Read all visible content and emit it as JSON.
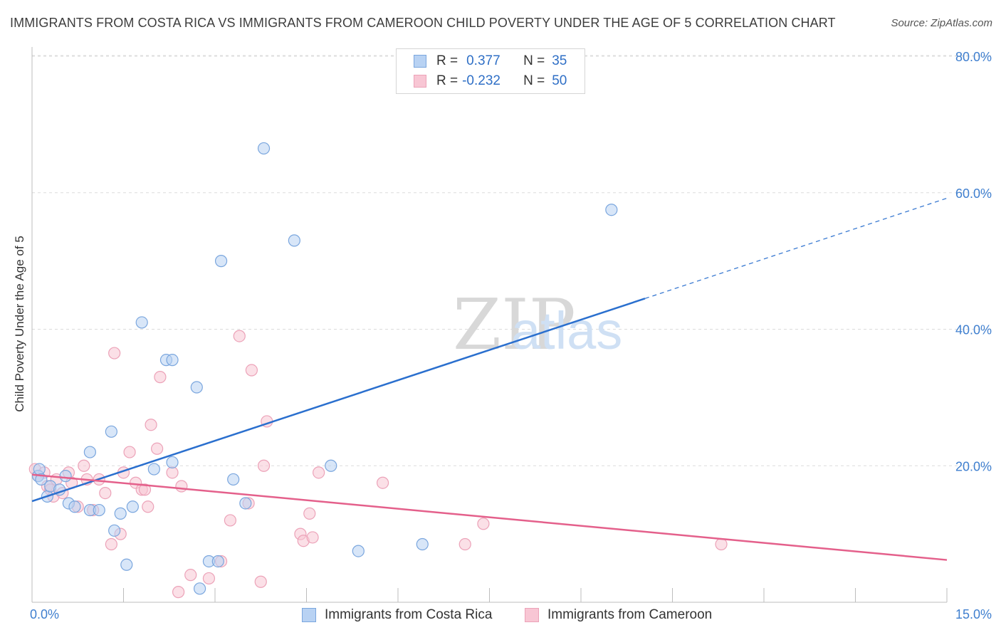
{
  "title": "IMMIGRANTS FROM COSTA RICA VS IMMIGRANTS FROM CAMEROON CHILD POVERTY UNDER THE AGE OF 5 CORRELATION CHART",
  "source": "Source: ZipAtlas.com",
  "watermark": {
    "zip": "ZIP",
    "atlas": "atlas"
  },
  "legend": {
    "series1": {
      "r_label": "R =",
      "r_value": "0.377",
      "n_label": "N =",
      "n_value": "35"
    },
    "series2": {
      "r_label": "R =",
      "r_value": "-0.232",
      "n_label": "N =",
      "n_value": "50"
    }
  },
  "colors": {
    "blue_fill": "#b8d2f3",
    "blue_stroke": "#7aa6de",
    "blue_line": "#2a6fce",
    "pink_fill": "#f8c6d4",
    "pink_stroke": "#eca2b8",
    "pink_line": "#e4608b",
    "axis_text": "#3f7fcf",
    "grid": "#dcdcdc"
  },
  "chart_data": {
    "type": "scatter",
    "title": "IMMIGRANTS FROM COSTA RICA VS IMMIGRANTS FROM CAMEROON CHILD POVERTY UNDER THE AGE OF 5 CORRELATION CHART",
    "xlabel": "",
    "ylabel": "Child Poverty Under the Age of 5",
    "xlim": [
      0,
      15
    ],
    "ylim": [
      0,
      82
    ],
    "x_tick_labels": [
      "0.0%",
      "15.0%"
    ],
    "y_ticks": [
      20,
      40,
      60,
      80
    ],
    "y_tick_labels": [
      "20.0%",
      "40.0%",
      "60.0%",
      "80.0%"
    ],
    "grid": true,
    "series": [
      {
        "name": "Immigrants from Costa Rica",
        "color": "#b8d2f3",
        "points": [
          [
            0.1,
            18.5
          ],
          [
            0.12,
            19.5
          ],
          [
            0.15,
            18
          ],
          [
            0.25,
            15.5
          ],
          [
            0.3,
            17
          ],
          [
            0.45,
            16.5
          ],
          [
            0.55,
            18.5
          ],
          [
            0.6,
            14.5
          ],
          [
            0.7,
            14
          ],
          [
            0.95,
            13.5
          ],
          [
            1.1,
            13.5
          ],
          [
            1.3,
            25
          ],
          [
            0.95,
            22
          ],
          [
            1.35,
            10.5
          ],
          [
            1.45,
            13
          ],
          [
            1.55,
            5.5
          ],
          [
            1.65,
            14
          ],
          [
            1.8,
            41
          ],
          [
            2.0,
            19.5
          ],
          [
            2.2,
            35.5
          ],
          [
            2.3,
            35.5
          ],
          [
            2.3,
            20.5
          ],
          [
            2.7,
            31.5
          ],
          [
            2.75,
            2
          ],
          [
            2.9,
            6
          ],
          [
            3.05,
            6
          ],
          [
            3.1,
            50
          ],
          [
            3.3,
            18
          ],
          [
            3.5,
            14.5
          ],
          [
            3.8,
            66.5
          ],
          [
            4.3,
            53
          ],
          [
            4.9,
            20
          ],
          [
            5.35,
            7.5
          ],
          [
            6.4,
            8.5
          ],
          [
            9.5,
            57.5
          ]
        ],
        "trend": {
          "x": [
            0,
            10.05
          ],
          "y": [
            14.8,
            44.5
          ],
          "dashed_to": [
            15,
            59.2
          ]
        }
      },
      {
        "name": "Immigrants from Cameroon",
        "color": "#f8c6d4",
        "points": [
          [
            0.05,
            19.5
          ],
          [
            0.1,
            18.5
          ],
          [
            0.2,
            19
          ],
          [
            0.25,
            17
          ],
          [
            0.3,
            16.5
          ],
          [
            0.35,
            15.5
          ],
          [
            0.4,
            18
          ],
          [
            0.5,
            16
          ],
          [
            0.6,
            19
          ],
          [
            0.65,
            17.5
          ],
          [
            0.75,
            14
          ],
          [
            0.85,
            20
          ],
          [
            0.9,
            18
          ],
          [
            1.0,
            13.5
          ],
          [
            1.1,
            18
          ],
          [
            1.2,
            16
          ],
          [
            1.3,
            8.5
          ],
          [
            1.35,
            36.5
          ],
          [
            1.45,
            10
          ],
          [
            1.5,
            19
          ],
          [
            1.6,
            22
          ],
          [
            1.7,
            17.5
          ],
          [
            1.8,
            16.5
          ],
          [
            1.85,
            16.5
          ],
          [
            1.9,
            14
          ],
          [
            1.95,
            26
          ],
          [
            2.05,
            22.5
          ],
          [
            2.1,
            33
          ],
          [
            2.3,
            19
          ],
          [
            2.4,
            1.5
          ],
          [
            2.45,
            17
          ],
          [
            2.6,
            4
          ],
          [
            2.9,
            3.5
          ],
          [
            3.1,
            6
          ],
          [
            3.25,
            12
          ],
          [
            3.4,
            39
          ],
          [
            3.55,
            14.5
          ],
          [
            3.6,
            34
          ],
          [
            3.75,
            3
          ],
          [
            3.8,
            20
          ],
          [
            3.85,
            26.5
          ],
          [
            4.4,
            10
          ],
          [
            4.45,
            9
          ],
          [
            4.55,
            13
          ],
          [
            4.6,
            9.5
          ],
          [
            4.7,
            19
          ],
          [
            5.75,
            17.5
          ],
          [
            7.1,
            8.5
          ],
          [
            7.4,
            11.5
          ],
          [
            11.3,
            8.5
          ]
        ],
        "trend": {
          "x": [
            0,
            15
          ],
          "y": [
            18.7,
            6.2
          ]
        }
      }
    ]
  }
}
